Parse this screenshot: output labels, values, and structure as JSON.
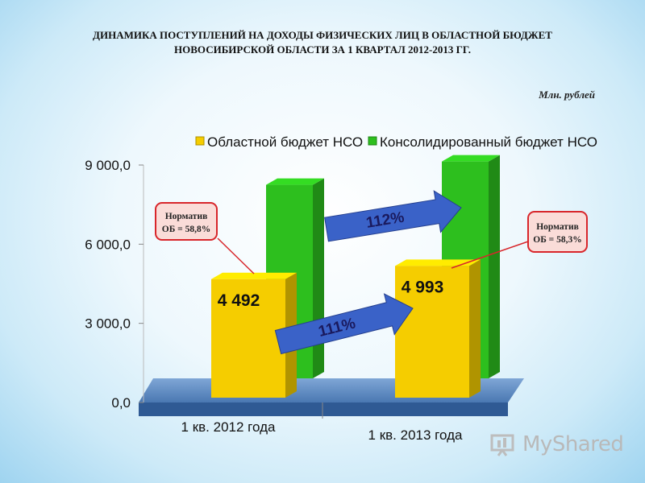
{
  "title_lines": [
    "ДИНАМИКА ПОСТУПЛЕНИЙ НА ДОХОДЫ ФИЗИЧЕСКИХ ЛИЦ В ОБЛАСТНОЙ БЮДЖЕТ",
    "НОВОСИБИРСКОЙ ОБЛАСТИ ЗА 1 КВАРТАЛ 2012-2013 ГГ."
  ],
  "units": "Млн. рублей",
  "colors": {
    "regional": "#f5cd00",
    "consolidated": "#2dbf1e",
    "floor": "#5b8fc7",
    "arrow": "#3a62c8",
    "box_border": "#d8262b",
    "box_fill": "#fadcd8"
  },
  "chart_data": {
    "type": "bar",
    "categories": [
      "1 кв. 2012 года",
      "1 кв. 2013 года"
    ],
    "series": [
      {
        "name": "Областной бюджет НСО",
        "values": [
          4492,
          4993
        ],
        "labels": [
          "4 492",
          "4 993"
        ]
      },
      {
        "name": "Консолидированный бюджет НСО",
        "values": [
          7640,
          8560
        ]
      }
    ],
    "ylim": [
      0,
      9000
    ],
    "yticks": [
      0,
      3000,
      6000,
      9000
    ],
    "ytick_labels": [
      "0,0",
      "3 000,0",
      "6 000,0",
      "9 000,0"
    ],
    "legend_position": "top",
    "grid": false,
    "annotations": [
      {
        "text": "112%",
        "from_series": 1
      },
      {
        "text": "111%",
        "from_series": 0
      }
    ],
    "callouts": [
      {
        "line1": "Норматив",
        "line2": "ОБ = 58,8%"
      },
      {
        "line1": "Норматив",
        "line2": "ОБ = 58,3%"
      }
    ]
  },
  "watermark": "MyShared"
}
